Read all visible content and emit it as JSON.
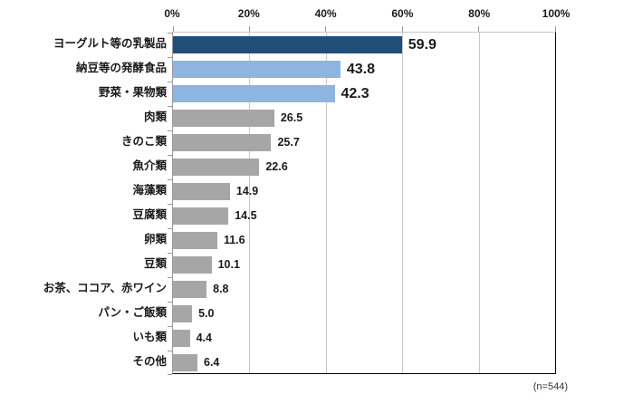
{
  "chart_data": {
    "type": "bar",
    "orientation": "horizontal",
    "title": "",
    "xlabel": "",
    "ylabel": "",
    "categories": [
      "ヨーグルト等の乳製品",
      "納豆等の発酵食品",
      "野菜・果物類",
      "肉類",
      "きのこ類",
      "魚介類",
      "海藻類",
      "豆腐類",
      "卵類",
      "豆類",
      "お茶、ココア、赤ワイン",
      "パン・ご飯類",
      "いも類",
      "その他"
    ],
    "values": [
      59.9,
      43.8,
      42.3,
      26.5,
      25.7,
      22.6,
      14.9,
      14.5,
      11.6,
      10.1,
      8.8,
      5.0,
      4.4,
      6.4
    ],
    "value_labels": [
      "59.9",
      "43.8",
      "42.3",
      "26.5",
      "25.7",
      "22.6",
      "14.9",
      "14.5",
      "11.6",
      "10.1",
      "8.8",
      "5.0",
      "4.4",
      "6.4"
    ],
    "bar_colors": [
      "#1F4E79",
      "#8EB4E2",
      "#8EB4E2",
      "#A6A6A6",
      "#A6A6A6",
      "#A6A6A6",
      "#A6A6A6",
      "#A6A6A6",
      "#A6A6A6",
      "#A6A6A6",
      "#A6A6A6",
      "#A6A6A6",
      "#A6A6A6",
      "#A6A6A6"
    ],
    "big_value_label": [
      true,
      true,
      true,
      false,
      false,
      false,
      false,
      false,
      false,
      false,
      false,
      false,
      false,
      false
    ],
    "xlim": [
      0,
      100
    ],
    "x_tick_positions": [
      0,
      20,
      40,
      60,
      80,
      100
    ],
    "x_tick_labels": [
      "0%",
      "20%",
      "40%",
      "60%",
      "80%",
      "100%"
    ],
    "grid": true,
    "legend": false,
    "note": "(n=544)",
    "palette": {
      "dark_blue": "#1F4E79",
      "light_blue": "#8EB4E2",
      "gray": "#A6A6A6",
      "gridline": "#C9C9C9",
      "axis_line": "#000000",
      "tick_line": "#9B9B9B"
    }
  }
}
